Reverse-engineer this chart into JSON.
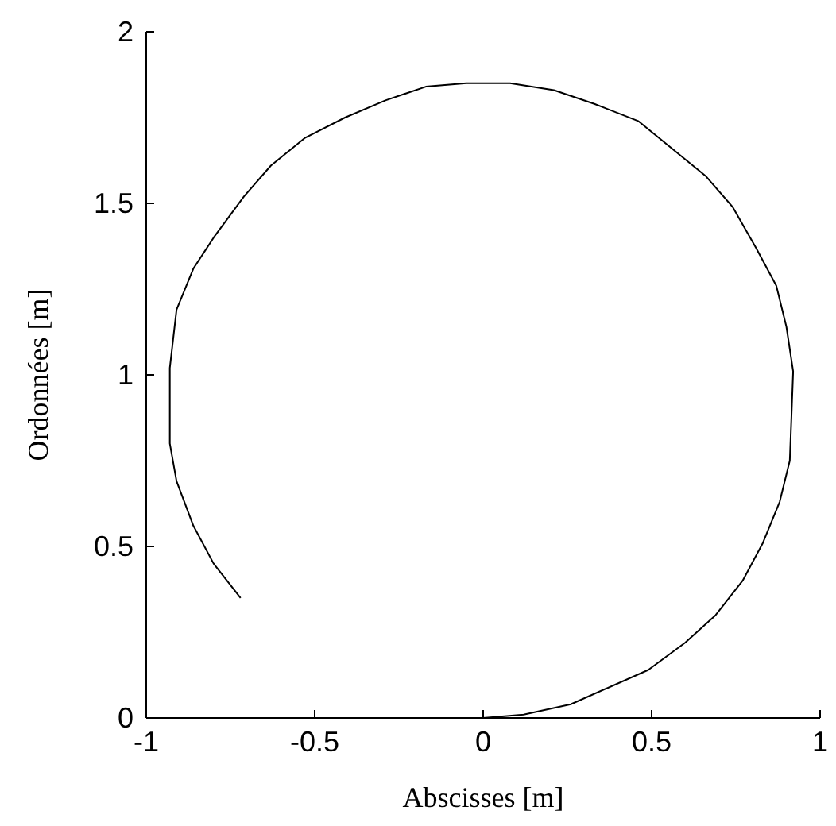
{
  "chart_data": {
    "type": "line",
    "xlabel": "Abscisses [m]",
    "ylabel": "Ordonnées [m]",
    "xlim": [
      -1,
      1
    ],
    "xticks": [
      -1,
      -0.5,
      0,
      0.5,
      1
    ],
    "ylim": [
      0,
      2
    ],
    "yticks": [
      0,
      0.5,
      1,
      1.5,
      2
    ],
    "series": [
      {
        "color": "#000000",
        "x": [
          0,
          0.12,
          0.26,
          0.49,
          0.6,
          0.69,
          0.77,
          0.83,
          0.88,
          0.91,
          0.92,
          0.9,
          0.87,
          0.81,
          0.74,
          0.66,
          0.46,
          0.33,
          0.21,
          0.08,
          -0.05,
          -0.17,
          -0.29,
          -0.41,
          -0.53,
          -0.63,
          -0.71,
          -0.8,
          -0.86,
          -0.91,
          -0.93,
          -0.93,
          -0.91,
          -0.86,
          -0.8,
          -0.72
        ],
        "values": [
          0,
          0.01,
          0.04,
          0.14,
          0.22,
          0.3,
          0.4,
          0.51,
          0.63,
          0.75,
          1.01,
          1.14,
          1.26,
          1.37,
          1.49,
          1.58,
          1.74,
          1.79,
          1.83,
          1.85,
          1.85,
          1.84,
          1.8,
          1.75,
          1.69,
          1.61,
          1.52,
          1.4,
          1.31,
          1.19,
          1.02,
          0.8,
          0.69,
          0.56,
          0.45,
          0.35
        ]
      }
    ]
  }
}
